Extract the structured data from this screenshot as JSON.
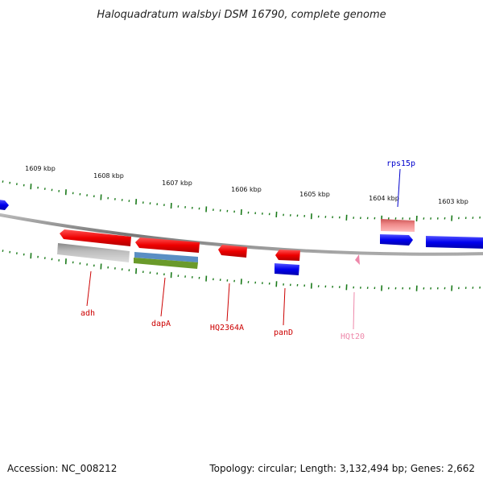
{
  "title": "Haloquadratum walsbyi DSM 16790, complete genome",
  "footer": {
    "accession": "Accession: NC_008212",
    "summary": "Topology: circular; Length: 3,132,494 bp; Genes: 2,662"
  },
  "scale_labels": [
    "1609 kbp",
    "1608 kbp",
    "1607 kbp",
    "1606 kbp",
    "1605 kbp",
    "1604 kbp",
    "1603 kbp"
  ],
  "gene_labels": [
    {
      "id": "adh",
      "text": "adh",
      "color": "#cc0000"
    },
    {
      "id": "dapA",
      "text": "dapA",
      "color": "#cc0000"
    },
    {
      "id": "HQ2364A",
      "text": "HQ2364A",
      "color": "#cc0000"
    },
    {
      "id": "panD",
      "text": "panD",
      "color": "#cc0000"
    },
    {
      "id": "HQt20",
      "text": "HQt20",
      "color": "#ee88aa"
    },
    {
      "id": "rps15p",
      "text": "rps15p",
      "color": "#0000cc"
    }
  ],
  "colors": {
    "backbone": "#888888",
    "ticks": "#1a7a1a",
    "reverse_gene": "#ee0000",
    "forward_gene": "#0000ee",
    "pseudo_gene": "#aaaaaa",
    "trna": "#ee88aa",
    "rrna_light": "#ee8888",
    "track_blue": "#5a8fc4",
    "track_green": "#6a9a2a"
  }
}
